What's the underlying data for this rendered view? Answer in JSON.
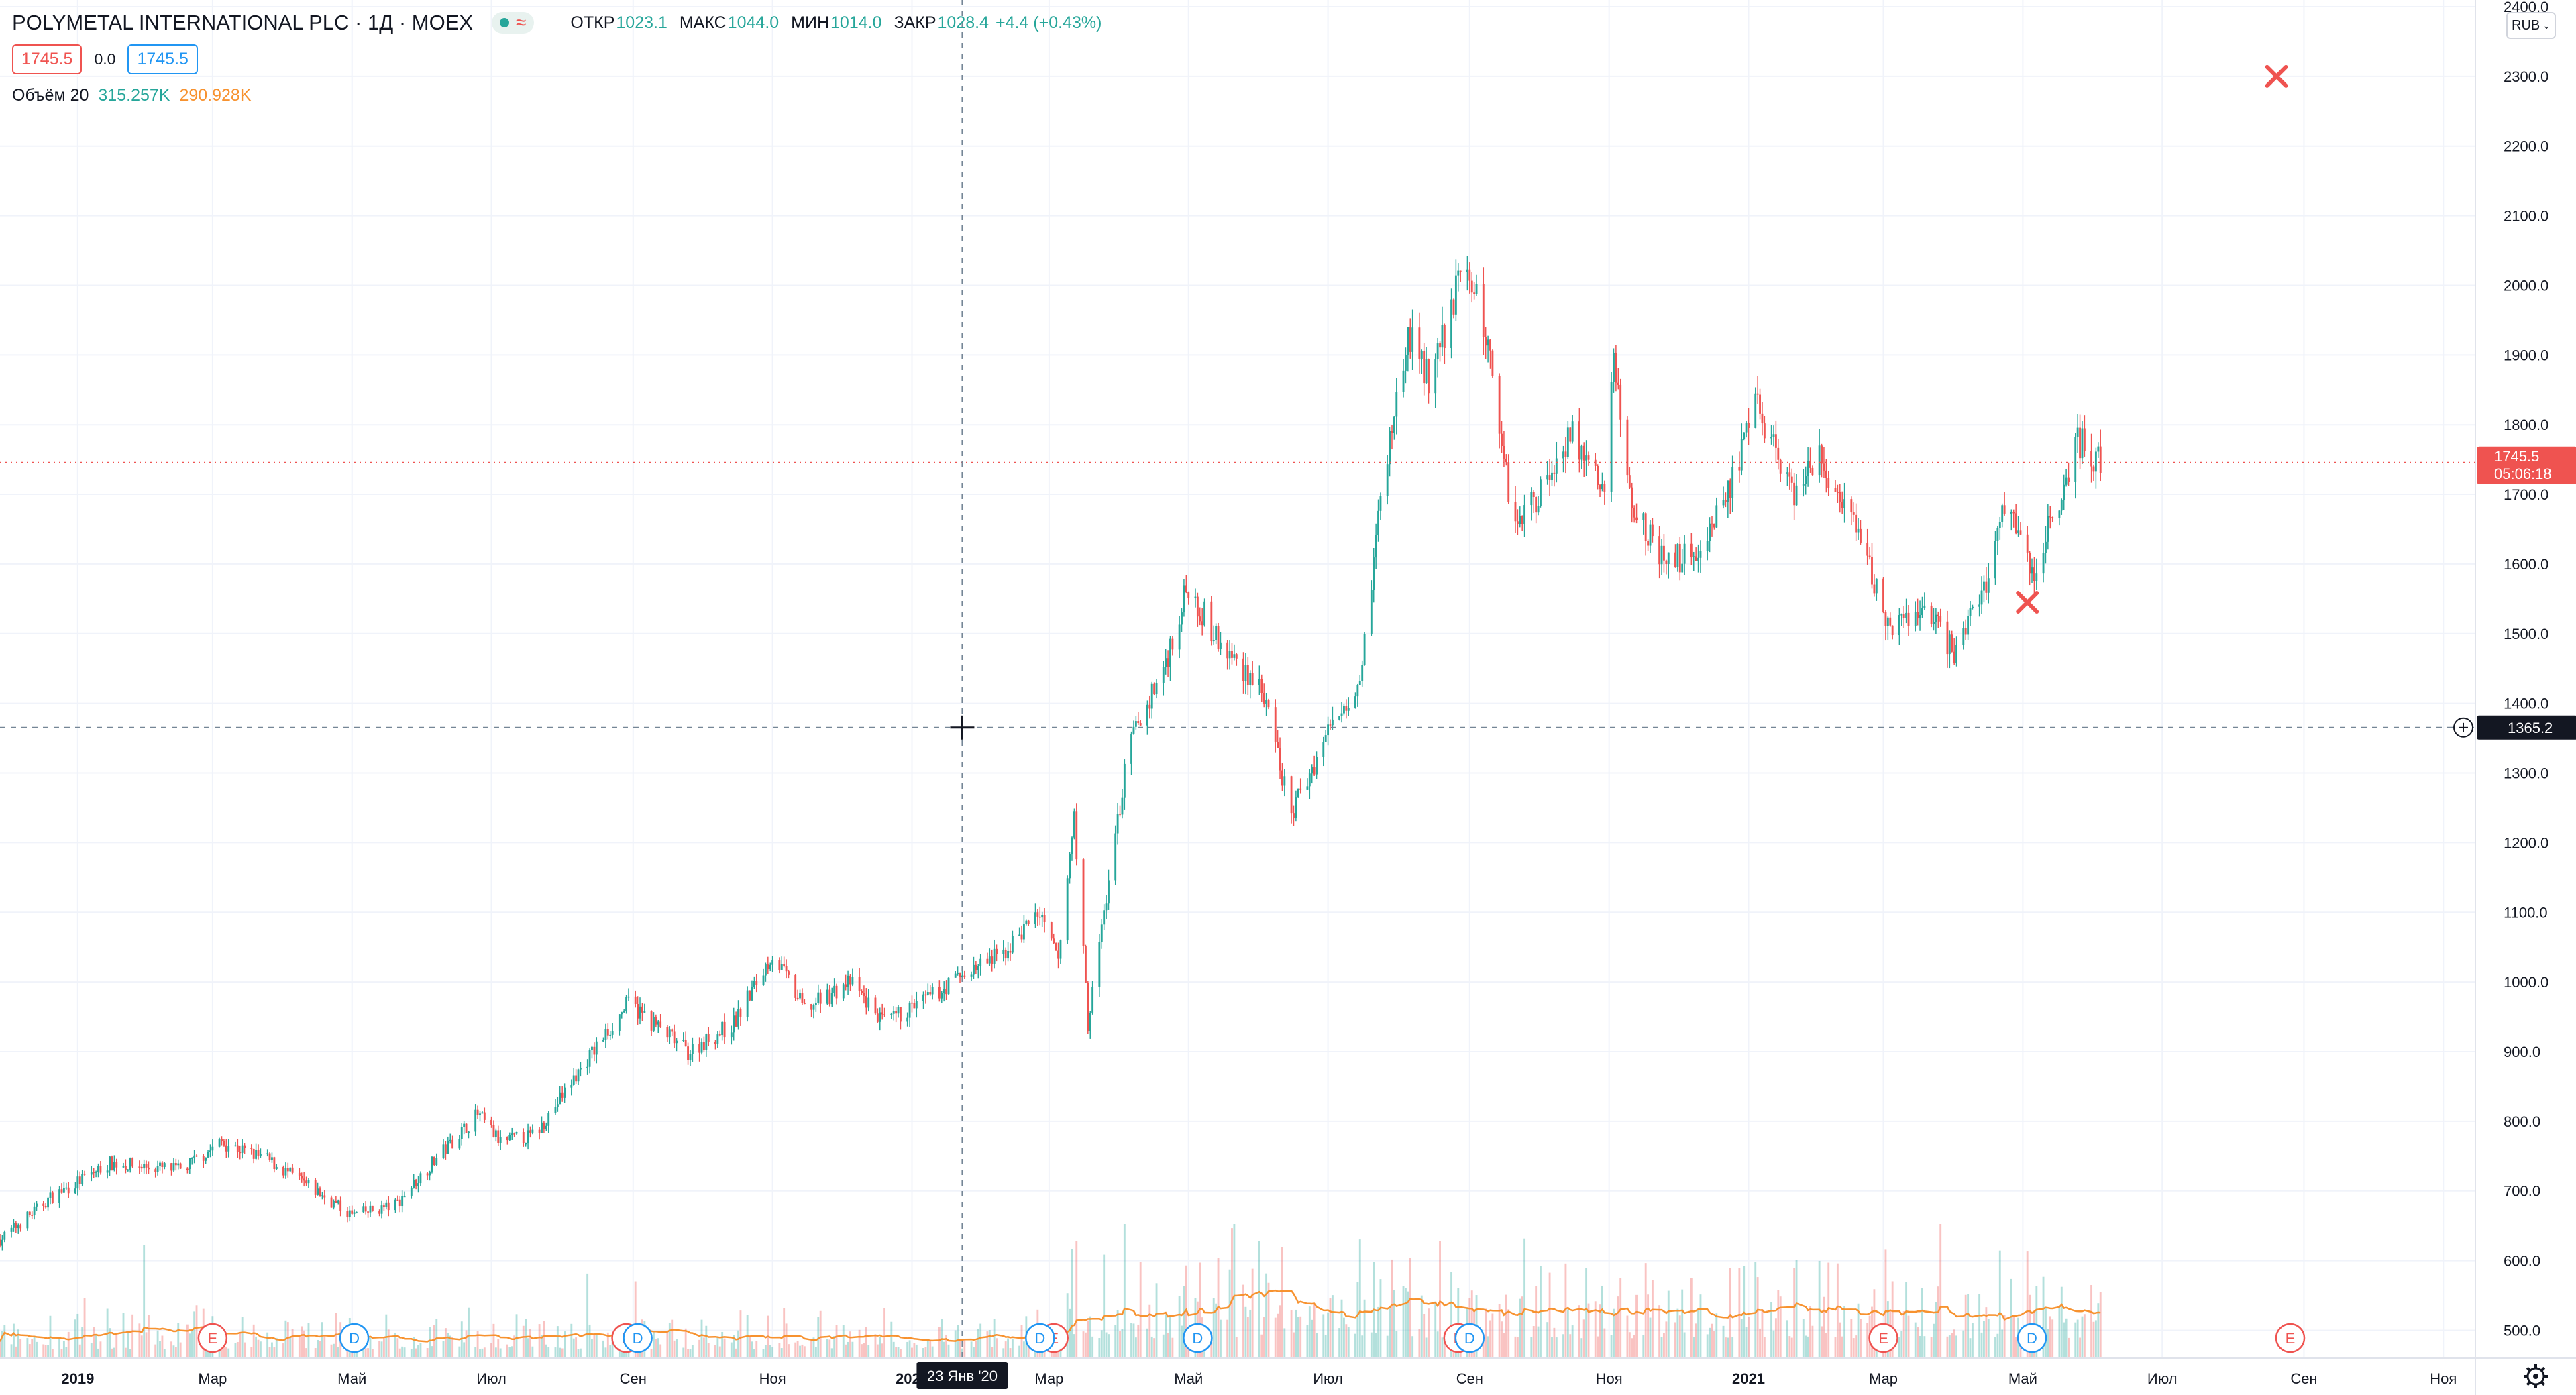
{
  "header": {
    "title": "POLYMETAL INTERNATIONAL PLC · 1Д · MOEX",
    "ohlc": [
      {
        "label": "ОТКР",
        "value": "1023.1"
      },
      {
        "label": "МАКС",
        "value": "1044.0"
      },
      {
        "label": "МИН",
        "value": "1014.0"
      },
      {
        "label": "ЗАКР",
        "value": "1028.4"
      }
    ],
    "change": "+4.4 (+0.43%)",
    "sell_price": "1745.5",
    "spread": "0.0",
    "buy_price": "1745.5",
    "volume_label": "Объём 20",
    "volume_value": "315.257K",
    "volume_ma_value": "290.928K",
    "currency": "RUB"
  },
  "colors": {
    "up": "#26a69a",
    "down": "#ef5350",
    "volume_ma": "#f7922f",
    "price_line": "#ef5350",
    "crosshair_badge": "#131722",
    "grid": "#f0f3fa",
    "earnings_marker": "#ef5350",
    "dividend_marker": "#2196f3"
  },
  "crosshair": {
    "price": "1365.2",
    "date_label": "23 Янв '20",
    "date": "2020-01-23"
  },
  "last_price": {
    "value": "1745.5",
    "countdown": "05:06:18"
  },
  "events": {
    "earnings_letter": "E",
    "dividend_letter": "D",
    "earnings_dates": [
      "2019-03-01",
      "2019-08-29",
      "2020-03-03",
      "2020-08-27",
      "2021-03-01",
      "2021-08-26"
    ],
    "dividend_dates": [
      "2019-05-02",
      "2019-09-03",
      "2020-02-26",
      "2020-05-05",
      "2020-09-01",
      "2021-05-05"
    ]
  },
  "chart_data": {
    "type": "candlestick",
    "symbol": "POLYMETAL INTERNATIONAL PLC",
    "timeframe": "1Д",
    "exchange": "MOEX",
    "ylim": [
      460,
      2400
    ],
    "y_ticks": [
      500,
      600,
      700,
      800,
      900,
      1000,
      1100,
      1200,
      1300,
      1400,
      1500,
      1600,
      1700,
      1800,
      1900,
      2000,
      2100,
      2200,
      2300,
      2400
    ],
    "x_range": [
      "2018-11-28",
      "2021-11-15"
    ],
    "x_ticks": [
      {
        "date": "2019-01-01",
        "label": "2019"
      },
      {
        "date": "2019-03-01",
        "label": "Мар"
      },
      {
        "date": "2019-05-01",
        "label": "Май"
      },
      {
        "date": "2019-07-01",
        "label": "Июл"
      },
      {
        "date": "2019-09-01",
        "label": "Сен"
      },
      {
        "date": "2019-11-01",
        "label": "Ноя"
      },
      {
        "date": "2020-01-01",
        "label": "2020"
      },
      {
        "date": "2020-03-01",
        "label": "Мар"
      },
      {
        "date": "2020-05-01",
        "label": "Май"
      },
      {
        "date": "2020-07-01",
        "label": "Июл"
      },
      {
        "date": "2020-09-01",
        "label": "Сен"
      },
      {
        "date": "2020-11-01",
        "label": "Ноя"
      },
      {
        "date": "2021-01-01",
        "label": "2021"
      },
      {
        "date": "2021-03-01",
        "label": "Мар"
      },
      {
        "date": "2021-05-01",
        "label": "Май"
      },
      {
        "date": "2021-07-01",
        "label": "Июл"
      },
      {
        "date": "2021-09-01",
        "label": "Сен"
      },
      {
        "date": "2021-11-01",
        "label": "Ноя"
      }
    ],
    "price_path": [
      {
        "date": "2018-11-28",
        "close": 630
      },
      {
        "date": "2018-12-20",
        "close": 690
      },
      {
        "date": "2019-01-15",
        "close": 740
      },
      {
        "date": "2019-02-15",
        "close": 730
      },
      {
        "date": "2019-03-05",
        "close": 770
      },
      {
        "date": "2019-03-25",
        "close": 745
      },
      {
        "date": "2019-04-15",
        "close": 700
      },
      {
        "date": "2019-05-01",
        "close": 665
      },
      {
        "date": "2019-05-20",
        "close": 680
      },
      {
        "date": "2019-06-05",
        "close": 740
      },
      {
        "date": "2019-06-25",
        "close": 810
      },
      {
        "date": "2019-07-05",
        "close": 770
      },
      {
        "date": "2019-07-20",
        "close": 780
      },
      {
        "date": "2019-08-10",
        "close": 880
      },
      {
        "date": "2019-08-30",
        "close": 970
      },
      {
        "date": "2019-09-10",
        "close": 940
      },
      {
        "date": "2019-09-25",
        "close": 900
      },
      {
        "date": "2019-10-15",
        "close": 940
      },
      {
        "date": "2019-11-01",
        "close": 1040
      },
      {
        "date": "2019-11-15",
        "close": 960
      },
      {
        "date": "2019-12-05",
        "close": 1000
      },
      {
        "date": "2019-12-20",
        "close": 940
      },
      {
        "date": "2020-01-10",
        "close": 980
      },
      {
        "date": "2020-01-23",
        "close": 1010
      },
      {
        "date": "2020-02-10",
        "close": 1040
      },
      {
        "date": "2020-02-25",
        "close": 1100
      },
      {
        "date": "2020-03-05",
        "close": 1030
      },
      {
        "date": "2020-03-12",
        "close": 1240
      },
      {
        "date": "2020-03-18",
        "close": 940
      },
      {
        "date": "2020-03-25",
        "close": 1100
      },
      {
        "date": "2020-04-05",
        "close": 1340
      },
      {
        "date": "2020-04-20",
        "close": 1450
      },
      {
        "date": "2020-05-01",
        "close": 1570
      },
      {
        "date": "2020-05-15",
        "close": 1480
      },
      {
        "date": "2020-06-01",
        "close": 1430
      },
      {
        "date": "2020-06-15",
        "close": 1240
      },
      {
        "date": "2020-07-01",
        "close": 1360
      },
      {
        "date": "2020-07-15",
        "close": 1440
      },
      {
        "date": "2020-07-25",
        "close": 1720
      },
      {
        "date": "2020-08-05",
        "close": 1930
      },
      {
        "date": "2020-08-15",
        "close": 1860
      },
      {
        "date": "2020-08-30",
        "close": 2040
      },
      {
        "date": "2020-09-10",
        "close": 1900
      },
      {
        "date": "2020-09-20",
        "close": 1660
      },
      {
        "date": "2020-10-01",
        "close": 1700
      },
      {
        "date": "2020-10-15",
        "close": 1790
      },
      {
        "date": "2020-10-30",
        "close": 1700
      },
      {
        "date": "2020-11-03",
        "close": 1900
      },
      {
        "date": "2020-11-10",
        "close": 1700
      },
      {
        "date": "2020-11-25",
        "close": 1600
      },
      {
        "date": "2020-12-10",
        "close": 1620
      },
      {
        "date": "2020-12-25",
        "close": 1720
      },
      {
        "date": "2021-01-05",
        "close": 1830
      },
      {
        "date": "2021-01-20",
        "close": 1700
      },
      {
        "date": "2021-02-01",
        "close": 1750
      },
      {
        "date": "2021-02-20",
        "close": 1620
      },
      {
        "date": "2021-03-05",
        "close": 1500
      },
      {
        "date": "2021-03-20",
        "close": 1540
      },
      {
        "date": "2021-04-01",
        "close": 1470
      },
      {
        "date": "2021-04-15",
        "close": 1580
      },
      {
        "date": "2021-04-25",
        "close": 1700
      },
      {
        "date": "2021-05-05",
        "close": 1580
      },
      {
        "date": "2021-05-15",
        "close": 1680
      },
      {
        "date": "2021-05-25",
        "close": 1780
      },
      {
        "date": "2021-06-04",
        "close": 1745.5
      }
    ],
    "markers": [
      {
        "date": "2021-05-03",
        "price": 1545,
        "shape": "x"
      },
      {
        "date": "2021-08-20",
        "price": 2300,
        "shape": "x"
      }
    ]
  }
}
